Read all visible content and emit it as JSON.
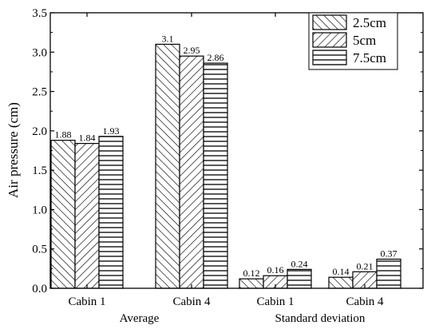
{
  "chart_data": {
    "type": "bar",
    "title": "",
    "ylabel": "Air pressure (cm)",
    "xlabel": "",
    "ylim": [
      0,
      3.5
    ],
    "yticks": [
      "0.0",
      "0.5",
      "1.0",
      "1.5",
      "2.0",
      "2.5",
      "3.0",
      "3.5"
    ],
    "groups": [
      "Average",
      "Standard deviation"
    ],
    "categories": [
      "Cabin 1",
      "Cabin 4",
      "Cabin 1",
      "Cabin 4"
    ],
    "series": [
      {
        "name": "2.5cm",
        "pattern": "backslash",
        "values": [
          1.88,
          3.1,
          0.12,
          0.14
        ],
        "labels": [
          "1.88",
          "3.1",
          "0.12",
          "0.14"
        ]
      },
      {
        "name": "5cm",
        "pattern": "slash",
        "values": [
          1.84,
          2.95,
          0.16,
          0.21
        ],
        "labels": [
          "1.84",
          "2.95",
          "0.16",
          "0.21"
        ]
      },
      {
        "name": "7.5cm",
        "pattern": "horizontal",
        "values": [
          1.93,
          2.86,
          0.24,
          0.37
        ],
        "labels": [
          "1.93",
          "2.86",
          "0.24",
          "0.37"
        ]
      }
    ],
    "legend_position": "top-right",
    "grid": false,
    "colors": {
      "bar_fill": "#ffffff",
      "hatch": "#000000",
      "axis": "#000000"
    }
  }
}
